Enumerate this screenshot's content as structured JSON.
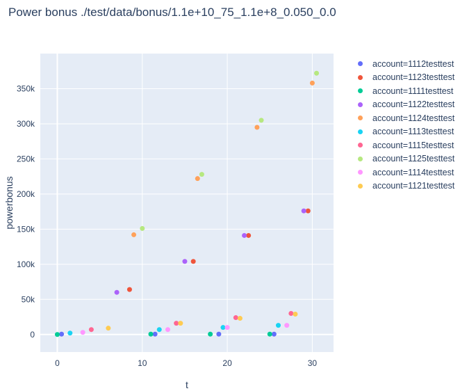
{
  "title": "Power bonus ./test/data/bonus/1.1e+10_75_1.1e+8_0.050_0.0",
  "chart_data": {
    "type": "scatter",
    "xlabel": "t",
    "ylabel": "powerbonus",
    "xlim": [
      -2,
      32.5
    ],
    "ylim": [
      -25000,
      400000
    ],
    "x_ticks": [
      0,
      10,
      20,
      30
    ],
    "x_tick_labels": [
      "0",
      "10",
      "20",
      "30"
    ],
    "y_ticks": [
      0,
      50000,
      100000,
      150000,
      200000,
      250000,
      300000,
      350000
    ],
    "y_tick_labels": [
      "0",
      "50k",
      "100k",
      "150k",
      "200k",
      "250k",
      "300k",
      "350k"
    ],
    "grid": true,
    "legend_position": "right",
    "series": [
      {
        "name": "account=1112testtest",
        "color": "#636efa",
        "x": [
          0.5,
          11.5,
          19,
          25.5
        ],
        "y": [
          500,
          500,
          500,
          500
        ]
      },
      {
        "name": "account=1123testtest",
        "color": "#EF553B",
        "x": [
          8.5,
          16,
          22.5,
          29.5
        ],
        "y": [
          64000,
          104000,
          141000,
          176000
        ]
      },
      {
        "name": "account=1111testtest",
        "color": "#00cc96",
        "x": [
          0,
          11,
          18,
          25
        ],
        "y": [
          0,
          500,
          500,
          500
        ]
      },
      {
        "name": "account=1122testtest",
        "color": "#ab63fa",
        "x": [
          7,
          15,
          22,
          29
        ],
        "y": [
          60000,
          104000,
          141000,
          176000
        ]
      },
      {
        "name": "account=1124testtest",
        "color": "#FFA15A",
        "x": [
          9,
          16.5,
          23.5,
          30
        ],
        "y": [
          142000,
          222000,
          295000,
          358000
        ]
      },
      {
        "name": "account=1113testtest",
        "color": "#19d3f3",
        "x": [
          1.5,
          12,
          19.5,
          26
        ],
        "y": [
          2000,
          7000,
          10000,
          13000
        ]
      },
      {
        "name": "account=1115testtest",
        "color": "#FF6692",
        "x": [
          4,
          14,
          21,
          27.5
        ],
        "y": [
          7000,
          16000,
          24000,
          30000
        ]
      },
      {
        "name": "account=1125testtest",
        "color": "#B6E880",
        "x": [
          10,
          17,
          24,
          30.5
        ],
        "y": [
          151000,
          228000,
          305000,
          372000
        ]
      },
      {
        "name": "account=1114testtest",
        "color": "#FF97FF",
        "x": [
          3,
          13,
          20,
          27
        ],
        "y": [
          3000,
          7000,
          10000,
          13000
        ]
      },
      {
        "name": "account=1121testtest",
        "color": "#FECB52",
        "x": [
          6,
          14.5,
          21.5,
          28
        ],
        "y": [
          9000,
          16000,
          23000,
          29000
        ]
      }
    ]
  }
}
